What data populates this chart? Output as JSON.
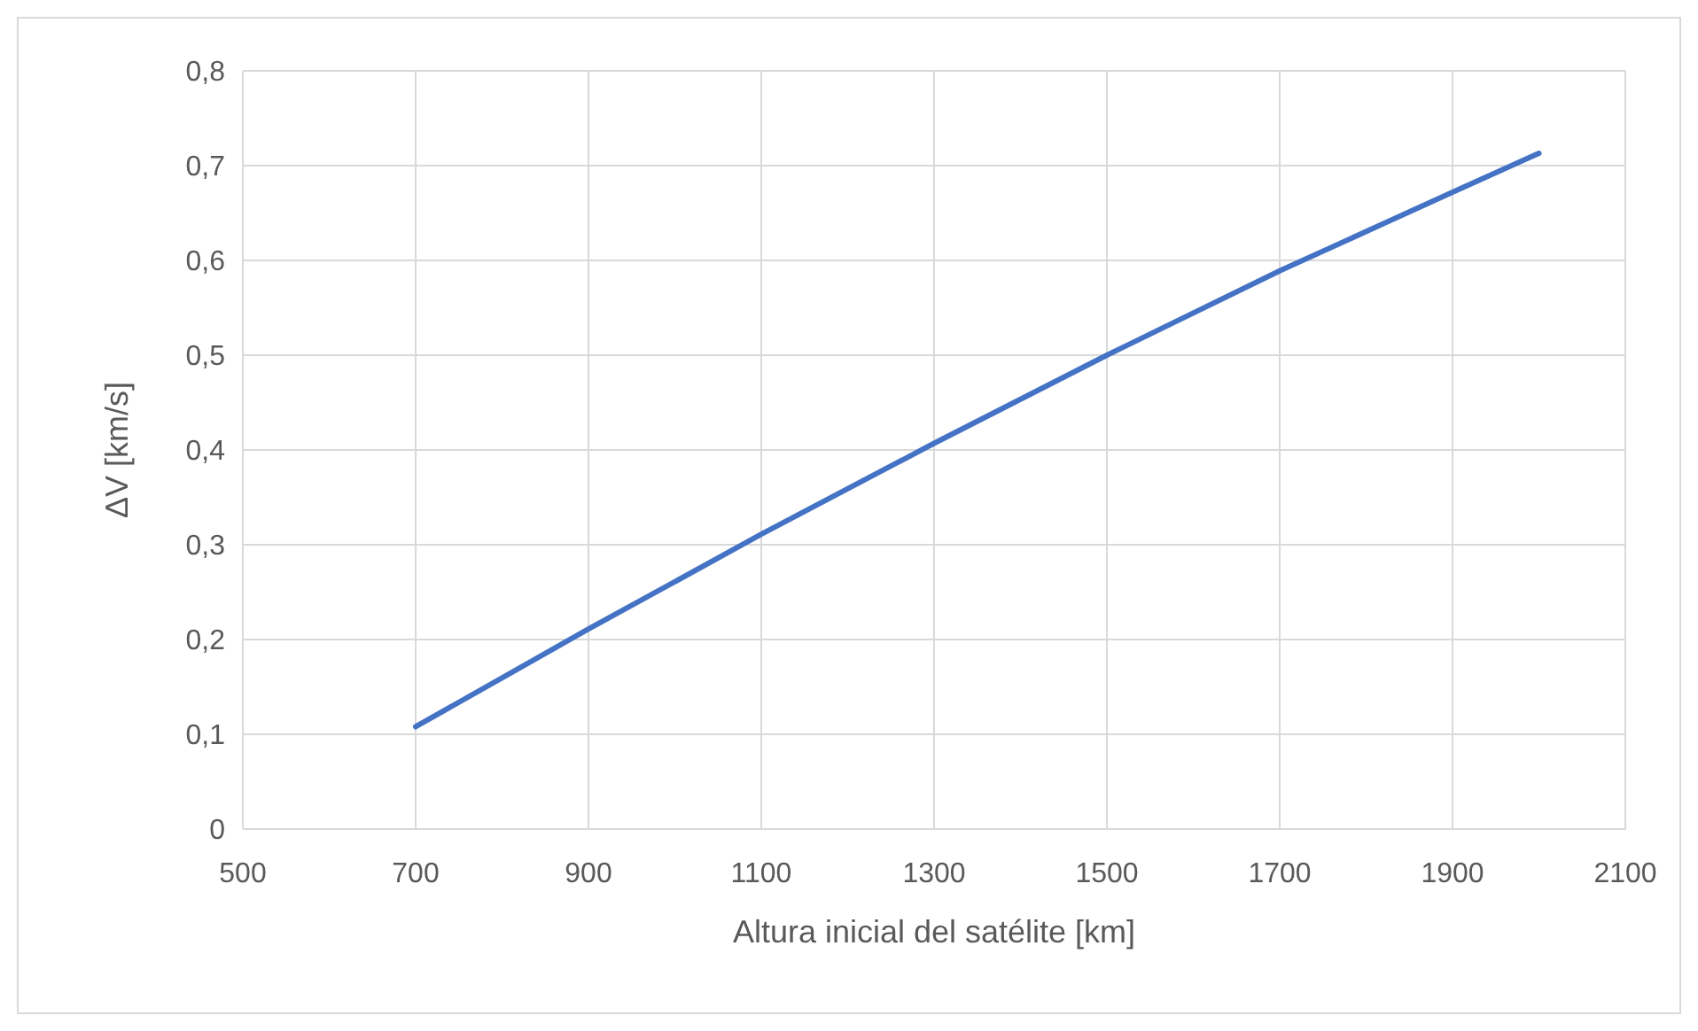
{
  "chart_data": {
    "type": "line",
    "xlabel": "Altura inicial del satélite [km]",
    "ylabel": "ΔV [km/s]",
    "x": [
      700,
      900,
      1100,
      1300,
      1500,
      1700,
      1900,
      2000
    ],
    "series": [
      {
        "color": "#4472c4",
        "values": [
          0.108,
          0.211,
          0.311,
          0.407,
          0.5,
          0.589,
          0.672,
          0.713
        ]
      }
    ],
    "xlim": [
      500,
      2100
    ],
    "xticks": [
      500,
      700,
      900,
      1100,
      1300,
      1500,
      1700,
      1900,
      2100
    ],
    "ylim": [
      0,
      0.8
    ],
    "yticks": [
      0,
      {
        "value": 0.1,
        "label": "0,1"
      },
      {
        "value": 0.2,
        "label": "0,2"
      },
      {
        "value": 0.3,
        "label": "0,3"
      },
      {
        "value": 0.4,
        "label": "0,4"
      },
      {
        "value": 0.5,
        "label": "0,5"
      },
      {
        "value": 0.6,
        "label": "0,6"
      },
      {
        "value": 0.7,
        "label": "0,7"
      },
      {
        "value": 0.8,
        "label": "0,8"
      }
    ],
    "grid": true,
    "marker": "none",
    "line_style": "solid"
  }
}
